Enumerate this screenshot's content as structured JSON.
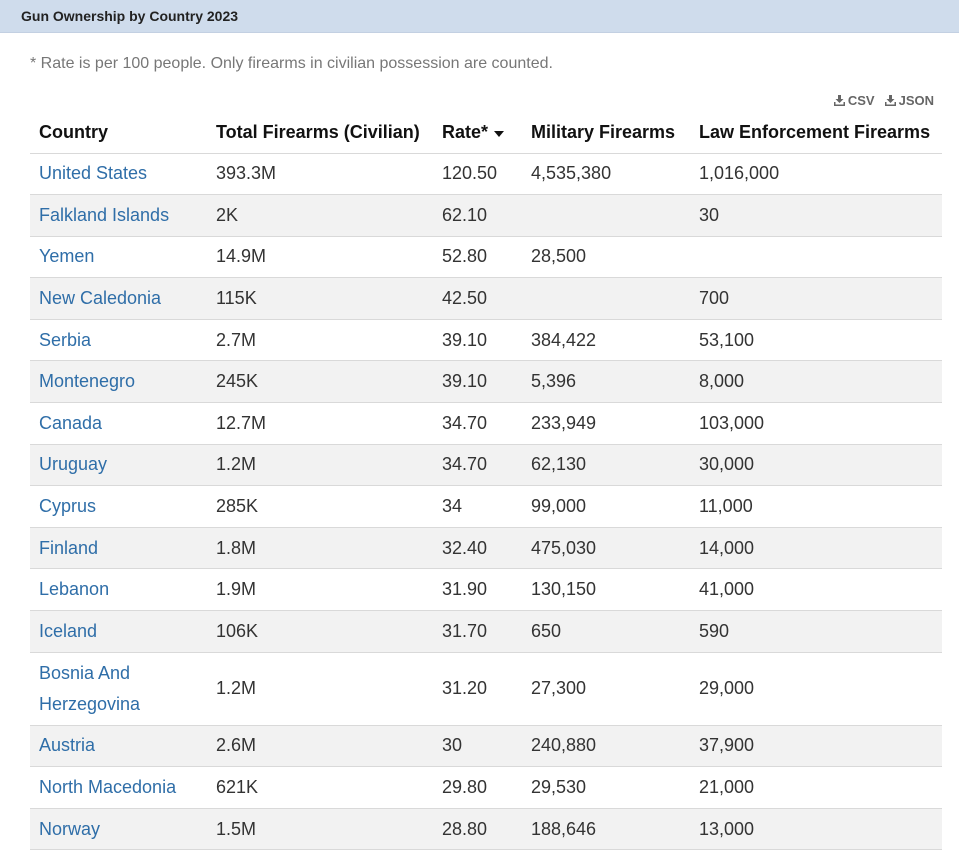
{
  "header": {
    "title": "Gun Ownership by Country 2023"
  },
  "note": "* Rate is per 100 people. Only firearms in civilian possession are counted.",
  "downloads": {
    "csv": "CSV",
    "json": "JSON"
  },
  "table": {
    "columns": [
      "Country",
      "Total Firearms (Civilian)",
      "Rate*",
      "Military Firearms",
      "Law Enforcement Firearms"
    ],
    "sort": {
      "column": "Rate*",
      "direction": "descending"
    },
    "rows": [
      [
        "United States",
        "393.3M",
        "120.50",
        "4,535,380",
        "1,016,000"
      ],
      [
        "Falkland Islands",
        "2K",
        "62.10",
        "",
        "30"
      ],
      [
        "Yemen",
        "14.9M",
        "52.80",
        "28,500",
        ""
      ],
      [
        "New Caledonia",
        "115K",
        "42.50",
        "",
        "700"
      ],
      [
        "Serbia",
        "2.7M",
        "39.10",
        "384,422",
        "53,100"
      ],
      [
        "Montenegro",
        "245K",
        "39.10",
        "5,396",
        "8,000"
      ],
      [
        "Canada",
        "12.7M",
        "34.70",
        "233,949",
        "103,000"
      ],
      [
        "Uruguay",
        "1.2M",
        "34.70",
        "62,130",
        "30,000"
      ],
      [
        "Cyprus",
        "285K",
        "34",
        "99,000",
        "11,000"
      ],
      [
        "Finland",
        "1.8M",
        "32.40",
        "475,030",
        "14,000"
      ],
      [
        "Lebanon",
        "1.9M",
        "31.90",
        "130,150",
        "41,000"
      ],
      [
        "Iceland",
        "106K",
        "31.70",
        "650",
        "590"
      ],
      [
        "Bosnia And Herzegovina",
        "1.2M",
        "31.20",
        "27,300",
        "29,000"
      ],
      [
        "Austria",
        "2.6M",
        "30",
        "240,880",
        "37,900"
      ],
      [
        "North Macedonia",
        "621K",
        "29.80",
        "29,530",
        "21,000"
      ],
      [
        "Norway",
        "1.5M",
        "28.80",
        "188,646",
        "13,000"
      ]
    ]
  }
}
